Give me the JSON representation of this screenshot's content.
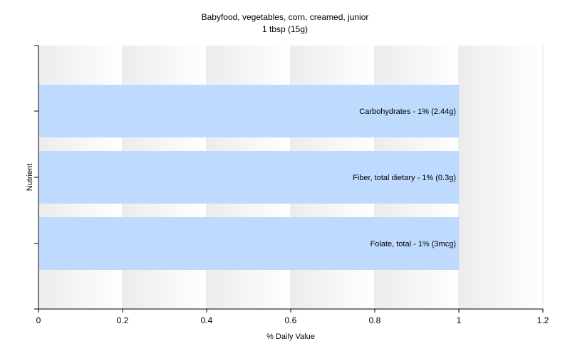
{
  "chart_data": {
    "type": "bar",
    "orientation": "horizontal",
    "title": "Babyfood, vegetables, corn, creamed, junior",
    "subtitle": "1 tbsp (15g)",
    "xlabel": "% Daily Value",
    "ylabel": "Nutrient",
    "xlim": [
      0,
      1.2
    ],
    "xticks": [
      "0",
      "0.2",
      "0.4",
      "0.6",
      "0.8",
      "1",
      "1.2"
    ],
    "grid": true,
    "legend": "none",
    "bar_color": "#bfdaff",
    "categories": [
      "Carbohydrates",
      "Fiber, total dietary",
      "Folate, total"
    ],
    "values": [
      1,
      1,
      1
    ],
    "labels": [
      "Carbohydrates - 1% (2.44g)",
      "Fiber, total dietary - 1% (0.3g)",
      "Folate, total - 1% (3mcg)"
    ]
  }
}
